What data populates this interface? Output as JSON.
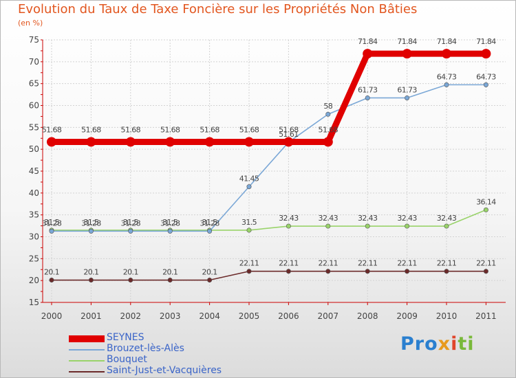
{
  "chart_data": {
    "type": "line",
    "title": "Evolution du Taux de Taxe Foncière sur les Propriétés Non Bâties",
    "ylabel": "(en %)",
    "xlabel": "",
    "ylim": [
      15,
      75
    ],
    "yticks": [
      15,
      20,
      25,
      30,
      35,
      40,
      45,
      50,
      55,
      60,
      65,
      70,
      75
    ],
    "categories": [
      "2000",
      "2001",
      "2002",
      "2003",
      "2004",
      "2005",
      "2006",
      "2007",
      "2008",
      "2009",
      "2010",
      "2011"
    ],
    "grid": true,
    "series": [
      {
        "name": "Saint-Just-et-Vacquières",
        "color": "#6b2a2a",
        "values": [
          20.1,
          20.1,
          20.1,
          20.1,
          20.1,
          22.11,
          22.11,
          22.11,
          22.11,
          22.11,
          22.11,
          22.11
        ],
        "labels": [
          "20.1",
          "20.1",
          "20.1",
          "20.1",
          "20.1",
          "22.11",
          "22.11",
          "22.11",
          "22.11",
          "22.11",
          "22.11",
          "22.11"
        ]
      },
      {
        "name": "Bouquet",
        "color": "#99d36a",
        "values": [
          31.5,
          31.5,
          31.5,
          31.5,
          31.5,
          31.5,
          32.43,
          32.43,
          32.43,
          32.43,
          32.43,
          36.14
        ],
        "labels": [
          "31.5",
          "31.5",
          "31.5",
          "31.5",
          "31.5",
          "31.5",
          "32.43",
          "32.43",
          "32.43",
          "32.43",
          "32.43",
          "36.14"
        ]
      },
      {
        "name": "Brouzet-lès-Alès",
        "color": "#7aa7d6",
        "values": [
          31.28,
          31.28,
          31.28,
          31.28,
          31.28,
          41.45,
          51.61,
          58,
          61.73,
          61.73,
          64.73,
          64.73
        ],
        "labels": [
          "31.28",
          "31.28",
          "31.28",
          "31.28",
          "31.28",
          "41.45",
          "51.61",
          "58",
          "61.73",
          "61.73",
          "64.73",
          "64.73"
        ]
      },
      {
        "name": "SEYNES",
        "color": "#e00000",
        "values": [
          51.68,
          51.68,
          51.68,
          51.68,
          51.68,
          51.68,
          51.68,
          51.68,
          71.84,
          71.84,
          71.84,
          71.84
        ],
        "labels": [
          "51.68",
          "51.68",
          "51.68",
          "51.68",
          "51.68",
          "51.68",
          "51.68",
          "51.68",
          "71.84",
          "71.84",
          "71.84",
          "71.84"
        ]
      }
    ],
    "legend": [
      {
        "name": "SEYNES",
        "color": "#e00000"
      },
      {
        "name": "Brouzet-lès-Alès",
        "color": "#7aa7d6"
      },
      {
        "name": "Bouquet",
        "color": "#99d36a"
      },
      {
        "name": "Saint-Just-et-Vacquières",
        "color": "#6b2a2a"
      }
    ],
    "legend_position": "bottom-left"
  },
  "brand": {
    "p1": "Pro",
    "p2": "x",
    "p3": "i",
    "p4": "ti"
  }
}
